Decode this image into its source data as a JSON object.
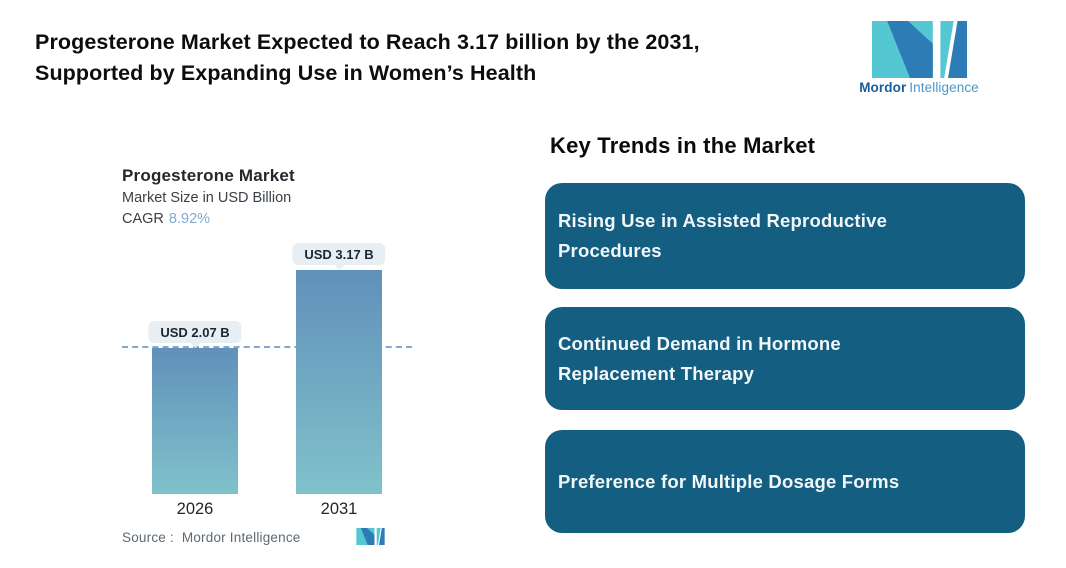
{
  "page": {
    "background": "#ffffff"
  },
  "header": {
    "title_lines": [
      "Progesterone Market Expected to Reach 3.17 billion by the 2031,",
      "Supported by Expanding Use in Women’s Health"
    ],
    "logo": {
      "name": "Mordor Intelligence",
      "brand_bold": "Mordor",
      "brand_light": "Intelligence",
      "teal": "#55c7d3",
      "blue": "#2e7cb6"
    }
  },
  "chart": {
    "title": "Progesterone Market",
    "subtitle": "Market Size in USD Billion",
    "cagr_label": "CAGR",
    "cagr_value": "8.92%",
    "source_label": "Source :",
    "source_value": "Mordor Intelligence"
  },
  "chart_data": {
    "type": "bar",
    "title": "Progesterone Market",
    "subtitle": "Market Size in USD Billion",
    "cagr": "8.92%",
    "categories": [
      "2026",
      "2031"
    ],
    "values": [
      2.07,
      3.17
    ],
    "bar_labels": [
      "USD 2.07 B",
      "USD 3.17 B"
    ],
    "unit": "USD Billion",
    "reference_line": 2.07,
    "grid": false,
    "legend": false,
    "bar_color_top": "#6190ba",
    "bar_color_bottom": "#80c2cb",
    "reference_line_color": "#85a8c8"
  },
  "trends": {
    "heading": "Key Trends in the Market",
    "box_color": "#145e81",
    "items": [
      {
        "lines": [
          "Rising Use in Assisted Reproductive",
          "Procedures"
        ]
      },
      {
        "lines": [
          "Continued Demand in Hormone",
          "Replacement Therapy"
        ]
      },
      {
        "lines": [
          "Preference for Multiple Dosage Forms"
        ]
      }
    ]
  },
  "colors": {
    "accent_blue": "#7dabd4",
    "bubble_bg": "#e8eff4",
    "text_dark": "#0d0d0d",
    "source_gray": "#5c6a74"
  }
}
